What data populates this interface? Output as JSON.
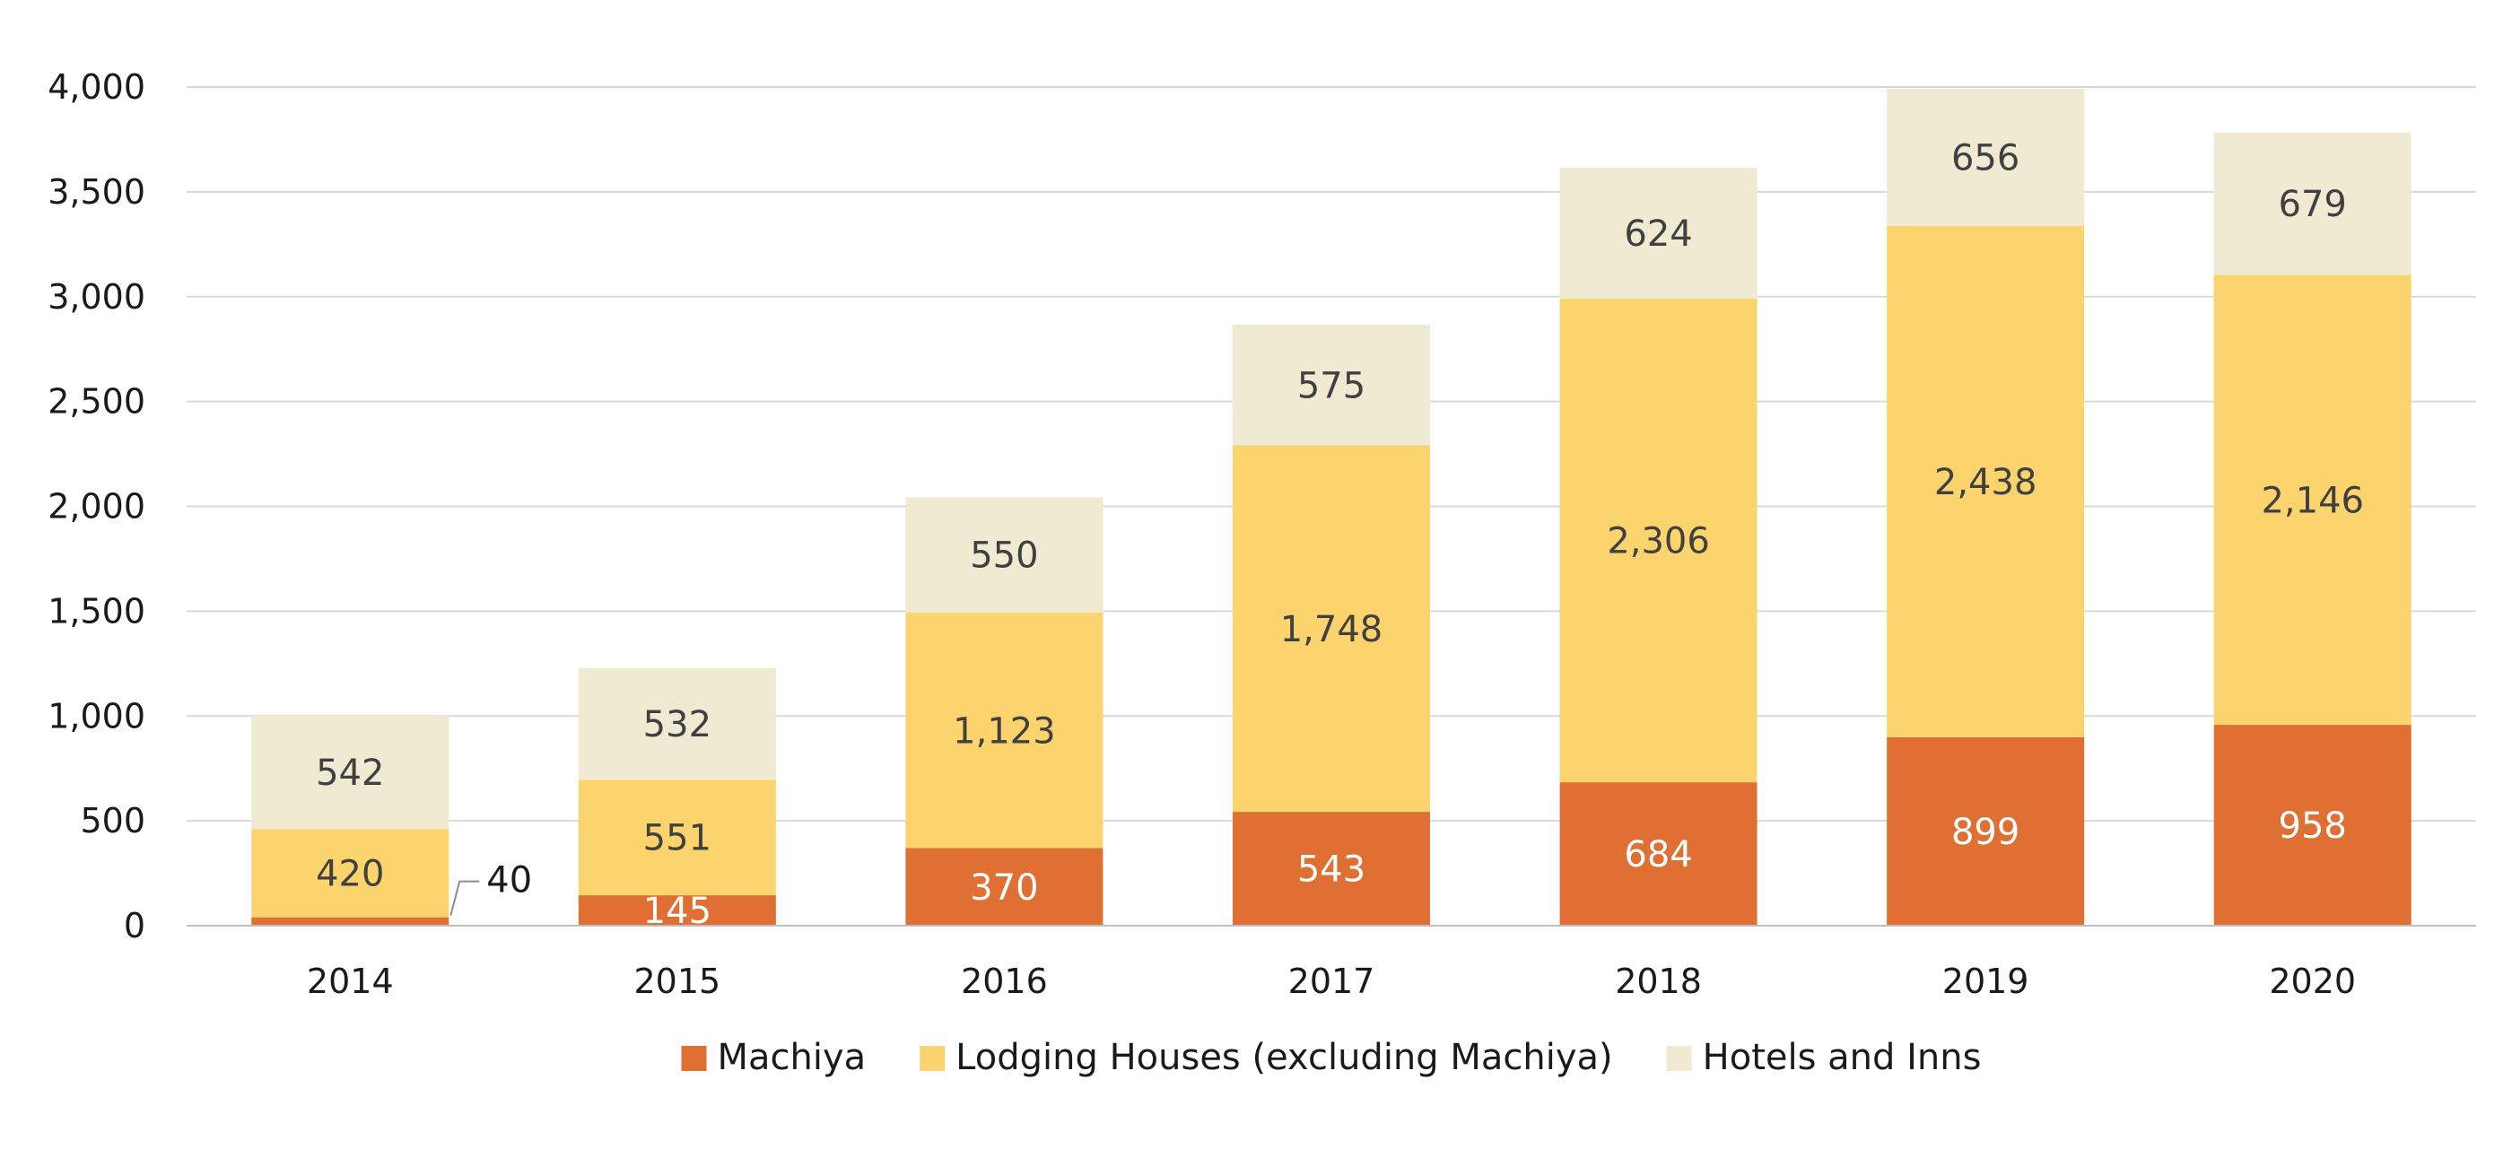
{
  "chart_data": {
    "type": "bar",
    "stacked": true,
    "title": "",
    "xlabel": "",
    "ylabel": "",
    "categories": [
      "2014",
      "2015",
      "2016",
      "2017",
      "2018",
      "2019",
      "2020"
    ],
    "series": [
      {
        "name": "Machiya",
        "color": "#DF6F32",
        "label_color": "#ffffff",
        "values": [
          40,
          145,
          370,
          543,
          684,
          899,
          958
        ]
      },
      {
        "name": "Lodging Houses (excluding Machiya)",
        "color": "#FCD46E",
        "label_color": "#404040",
        "values": [
          420,
          551,
          1123,
          1748,
          2306,
          2438,
          2146
        ]
      },
      {
        "name": "Hotels and Inns",
        "color": "#F0EAD2",
        "label_color": "#404040",
        "values": [
          542,
          532,
          550,
          575,
          624,
          656,
          679
        ]
      }
    ],
    "data_labels": {
      "Machiya": [
        "40",
        "145",
        "370",
        "543",
        "684",
        "899",
        "958"
      ],
      "Lodging Houses (excluding Machiya)": [
        "420",
        "551",
        "1,123",
        "1,748",
        "2,306",
        "2,438",
        "2,146"
      ],
      "Hotels and Inns": [
        "542",
        "532",
        "550",
        "575",
        "624",
        "656",
        "679"
      ]
    },
    "ylim": [
      0,
      4000
    ],
    "yticks": [
      0,
      500,
      1000,
      1500,
      2000,
      2500,
      3000,
      3500,
      4000
    ],
    "ytick_labels": [
      "0",
      "500",
      "1,000",
      "1,500",
      "2,000",
      "2,500",
      "3,000",
      "3,500",
      "4,000"
    ],
    "grid": true,
    "grid_color": "#D9D9D9",
    "legend_position": "bottom"
  }
}
